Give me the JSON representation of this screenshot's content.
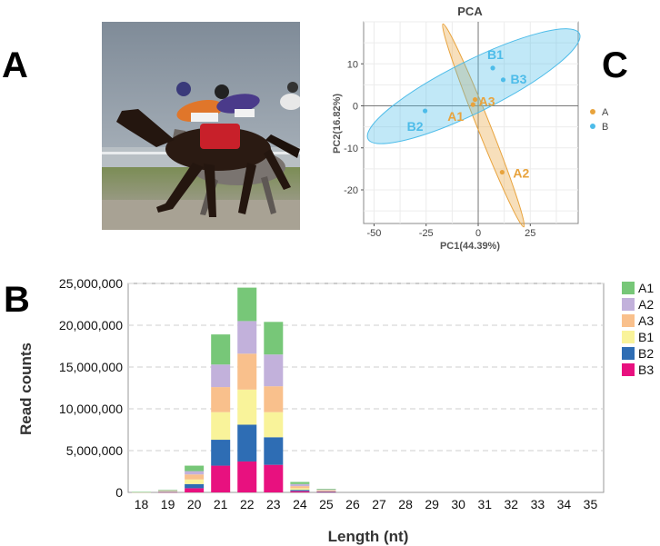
{
  "figure": {
    "panel_letters": {
      "a": "A",
      "b": "B",
      "c": "C"
    },
    "photo": {
      "description_icon": "horse-race-photo",
      "colors": {
        "sky": "#8f9aa6",
        "grass": "#6f8a4a",
        "horse": "#2a1a12",
        "silk_orange": "#e0762a",
        "silk_purple": "#4a3a8a",
        "saddlecloth": "#c8202a"
      }
    }
  },
  "chart_data": [
    {
      "type": "scatter",
      "title": "PCA",
      "xlabel": "PC1(44.39%)",
      "ylabel": "PC2(16.82%)",
      "xlim": [
        -55,
        48
      ],
      "ylim": [
        -28,
        20
      ],
      "xticks": [
        -50,
        -25,
        0,
        25
      ],
      "yticks": [
        10,
        0,
        -10,
        -20
      ],
      "grid": true,
      "legend_position": "right",
      "series": [
        {
          "name": "A",
          "color": "#E8A33D",
          "points": [
            {
              "label": "A1",
              "x": -2.5,
              "y": 0.3
            },
            {
              "label": "A2",
              "x": 11.5,
              "y": -15.8
            },
            {
              "label": "A3",
              "x": -1.5,
              "y": 1.5
            }
          ]
        },
        {
          "name": "B",
          "color": "#4DBCE9",
          "points": [
            {
              "label": "B1",
              "x": 7,
              "y": 9
            },
            {
              "label": "B2",
              "x": -25.5,
              "y": -1.2
            },
            {
              "label": "B3",
              "x": 12,
              "y": 6.2
            }
          ]
        }
      ]
    },
    {
      "type": "bar",
      "stacked": true,
      "title": "",
      "xlabel": "Length (nt)",
      "ylabel": "Read counts",
      "ylim": [
        0,
        25000000
      ],
      "yticks": [
        "0",
        "5,000,000",
        "10,000,000",
        "15,000,000",
        "20,000,000",
        "25,000,000"
      ],
      "categories": [
        "18",
        "19",
        "20",
        "21",
        "22",
        "23",
        "24",
        "25",
        "26",
        "27",
        "28",
        "29",
        "30",
        "31",
        "32",
        "33",
        "34",
        "35"
      ],
      "grid": true,
      "legend_position": "right",
      "series": [
        {
          "name": "B3",
          "color": "#E8117F",
          "values": [
            10000,
            40000,
            500000,
            3200000,
            3700000,
            3300000,
            150000,
            60000,
            0,
            0,
            0,
            0,
            0,
            0,
            0,
            0,
            0,
            0
          ]
        },
        {
          "name": "B2",
          "color": "#2E6DB4",
          "values": [
            10000,
            40000,
            500000,
            3100000,
            4400000,
            3300000,
            150000,
            60000,
            0,
            0,
            0,
            0,
            0,
            0,
            0,
            0,
            0,
            0
          ]
        },
        {
          "name": "B1",
          "color": "#F9F39A",
          "values": [
            10000,
            50000,
            550000,
            3300000,
            4200000,
            3000000,
            200000,
            60000,
            0,
            0,
            0,
            0,
            0,
            0,
            0,
            0,
            0,
            0
          ]
        },
        {
          "name": "A3",
          "color": "#F9C08C",
          "values": [
            10000,
            60000,
            600000,
            3000000,
            4300000,
            3100000,
            250000,
            80000,
            0,
            0,
            0,
            0,
            0,
            0,
            0,
            0,
            0,
            0
          ]
        },
        {
          "name": "A2",
          "color": "#C2B1DB",
          "values": [
            10000,
            60000,
            400000,
            2700000,
            3900000,
            3800000,
            250000,
            80000,
            0,
            0,
            0,
            0,
            0,
            0,
            0,
            0,
            0,
            0
          ]
        },
        {
          "name": "A1",
          "color": "#77C778",
          "values": [
            10000,
            50000,
            650000,
            3600000,
            4000000,
            3900000,
            250000,
            80000,
            0,
            0,
            0,
            0,
            0,
            0,
            0,
            0,
            0,
            0
          ]
        }
      ],
      "legend_order": [
        "A1",
        "A2",
        "A3",
        "B1",
        "B2",
        "B3"
      ]
    }
  ]
}
